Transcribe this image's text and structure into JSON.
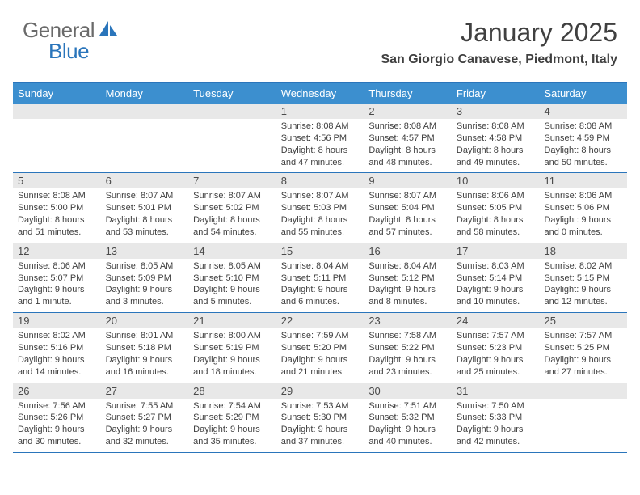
{
  "logo": {
    "text1": "General",
    "text2": "Blue"
  },
  "title": "January 2025",
  "location": "San Giorgio Canavese, Piedmont, Italy",
  "colors": {
    "header_bg": "#3c8fcf",
    "header_text": "#ffffff",
    "border": "#2a75bb",
    "daynum_bg": "#e8e8e8",
    "text": "#404040",
    "logo_gray": "#6a6a6a",
    "logo_blue": "#2a75bb"
  },
  "weekday_labels": [
    "Sunday",
    "Monday",
    "Tuesday",
    "Wednesday",
    "Thursday",
    "Friday",
    "Saturday"
  ],
  "weeks": [
    {
      "nums": [
        "",
        "",
        "",
        "1",
        "2",
        "3",
        "4"
      ],
      "data": [
        "",
        "",
        "",
        "Sunrise: 8:08 AM\nSunset: 4:56 PM\nDaylight: 8 hours and 47 minutes.",
        "Sunrise: 8:08 AM\nSunset: 4:57 PM\nDaylight: 8 hours and 48 minutes.",
        "Sunrise: 8:08 AM\nSunset: 4:58 PM\nDaylight: 8 hours and 49 minutes.",
        "Sunrise: 8:08 AM\nSunset: 4:59 PM\nDaylight: 8 hours and 50 minutes."
      ]
    },
    {
      "nums": [
        "5",
        "6",
        "7",
        "8",
        "9",
        "10",
        "11"
      ],
      "data": [
        "Sunrise: 8:08 AM\nSunset: 5:00 PM\nDaylight: 8 hours and 51 minutes.",
        "Sunrise: 8:07 AM\nSunset: 5:01 PM\nDaylight: 8 hours and 53 minutes.",
        "Sunrise: 8:07 AM\nSunset: 5:02 PM\nDaylight: 8 hours and 54 minutes.",
        "Sunrise: 8:07 AM\nSunset: 5:03 PM\nDaylight: 8 hours and 55 minutes.",
        "Sunrise: 8:07 AM\nSunset: 5:04 PM\nDaylight: 8 hours and 57 minutes.",
        "Sunrise: 8:06 AM\nSunset: 5:05 PM\nDaylight: 8 hours and 58 minutes.",
        "Sunrise: 8:06 AM\nSunset: 5:06 PM\nDaylight: 9 hours and 0 minutes."
      ]
    },
    {
      "nums": [
        "12",
        "13",
        "14",
        "15",
        "16",
        "17",
        "18"
      ],
      "data": [
        "Sunrise: 8:06 AM\nSunset: 5:07 PM\nDaylight: 9 hours and 1 minute.",
        "Sunrise: 8:05 AM\nSunset: 5:09 PM\nDaylight: 9 hours and 3 minutes.",
        "Sunrise: 8:05 AM\nSunset: 5:10 PM\nDaylight: 9 hours and 5 minutes.",
        "Sunrise: 8:04 AM\nSunset: 5:11 PM\nDaylight: 9 hours and 6 minutes.",
        "Sunrise: 8:04 AM\nSunset: 5:12 PM\nDaylight: 9 hours and 8 minutes.",
        "Sunrise: 8:03 AM\nSunset: 5:14 PM\nDaylight: 9 hours and 10 minutes.",
        "Sunrise: 8:02 AM\nSunset: 5:15 PM\nDaylight: 9 hours and 12 minutes."
      ]
    },
    {
      "nums": [
        "19",
        "20",
        "21",
        "22",
        "23",
        "24",
        "25"
      ],
      "data": [
        "Sunrise: 8:02 AM\nSunset: 5:16 PM\nDaylight: 9 hours and 14 minutes.",
        "Sunrise: 8:01 AM\nSunset: 5:18 PM\nDaylight: 9 hours and 16 minutes.",
        "Sunrise: 8:00 AM\nSunset: 5:19 PM\nDaylight: 9 hours and 18 minutes.",
        "Sunrise: 7:59 AM\nSunset: 5:20 PM\nDaylight: 9 hours and 21 minutes.",
        "Sunrise: 7:58 AM\nSunset: 5:22 PM\nDaylight: 9 hours and 23 minutes.",
        "Sunrise: 7:57 AM\nSunset: 5:23 PM\nDaylight: 9 hours and 25 minutes.",
        "Sunrise: 7:57 AM\nSunset: 5:25 PM\nDaylight: 9 hours and 27 minutes."
      ]
    },
    {
      "nums": [
        "26",
        "27",
        "28",
        "29",
        "30",
        "31",
        ""
      ],
      "data": [
        "Sunrise: 7:56 AM\nSunset: 5:26 PM\nDaylight: 9 hours and 30 minutes.",
        "Sunrise: 7:55 AM\nSunset: 5:27 PM\nDaylight: 9 hours and 32 minutes.",
        "Sunrise: 7:54 AM\nSunset: 5:29 PM\nDaylight: 9 hours and 35 minutes.",
        "Sunrise: 7:53 AM\nSunset: 5:30 PM\nDaylight: 9 hours and 37 minutes.",
        "Sunrise: 7:51 AM\nSunset: 5:32 PM\nDaylight: 9 hours and 40 minutes.",
        "Sunrise: 7:50 AM\nSunset: 5:33 PM\nDaylight: 9 hours and 42 minutes.",
        ""
      ]
    }
  ]
}
